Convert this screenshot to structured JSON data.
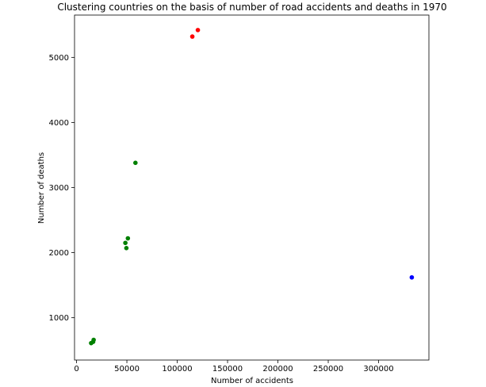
{
  "chart_data": {
    "type": "scatter",
    "title": "Clustering countries on the basis of number of road accidents and deaths in 1970",
    "xlabel": "Number of accidents",
    "ylabel": "Number of deaths",
    "xlim": [
      -2000,
      350000
    ],
    "ylim": [
      350,
      5650
    ],
    "xticks": [
      0,
      50000,
      100000,
      150000,
      200000,
      250000,
      300000
    ],
    "xtick_labels": [
      "0",
      "50000",
      "100000",
      "150000",
      "200000",
      "250000",
      "300000"
    ],
    "yticks": [
      1000,
      2000,
      3000,
      4000,
      5000
    ],
    "ytick_labels": [
      "1000",
      "2000",
      "3000",
      "4000",
      "5000"
    ],
    "grid": false,
    "series": [
      {
        "color": "#ff0000",
        "points": [
          {
            "x": 115000,
            "y": 5320
          },
          {
            "x": 120500,
            "y": 5420
          }
        ]
      },
      {
        "color": "#008000",
        "points": [
          {
            "x": 58500,
            "y": 3380
          },
          {
            "x": 51000,
            "y": 2220
          },
          {
            "x": 48500,
            "y": 2150
          },
          {
            "x": 49500,
            "y": 2070
          },
          {
            "x": 17000,
            "y": 660
          },
          {
            "x": 16500,
            "y": 630
          },
          {
            "x": 14500,
            "y": 610
          }
        ]
      },
      {
        "color": "#0000ff",
        "points": [
          {
            "x": 333000,
            "y": 1620
          }
        ]
      }
    ]
  }
}
